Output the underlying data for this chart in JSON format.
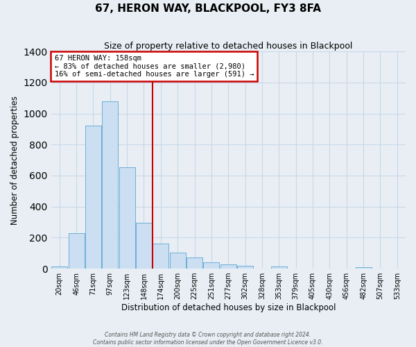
{
  "title": "67, HERON WAY, BLACKPOOL, FY3 8FA",
  "subtitle": "Size of property relative to detached houses in Blackpool",
  "xlabel": "Distribution of detached houses by size in Blackpool",
  "ylabel": "Number of detached properties",
  "bar_labels": [
    "20sqm",
    "46sqm",
    "71sqm",
    "97sqm",
    "123sqm",
    "148sqm",
    "174sqm",
    "200sqm",
    "225sqm",
    "251sqm",
    "277sqm",
    "302sqm",
    "328sqm",
    "353sqm",
    "379sqm",
    "405sqm",
    "430sqm",
    "456sqm",
    "482sqm",
    "507sqm",
    "533sqm"
  ],
  "bar_values": [
    15,
    230,
    920,
    1080,
    655,
    295,
    160,
    105,
    70,
    40,
    25,
    20,
    0,
    15,
    0,
    0,
    0,
    0,
    10,
    0,
    0
  ],
  "bar_color": "#ccdff2",
  "bar_edgecolor": "#6baed6",
  "vline_color": "#cc0000",
  "annotation_title": "67 HERON WAY: 158sqm",
  "annotation_line1": "← 83% of detached houses are smaller (2,980)",
  "annotation_line2": "16% of semi-detached houses are larger (591) →",
  "annotation_box_edgecolor": "#cc0000",
  "annotation_box_facecolor": "#ffffff",
  "ylim": [
    0,
    1400
  ],
  "yticks": [
    0,
    200,
    400,
    600,
    800,
    1000,
    1200,
    1400
  ],
  "footer_line1": "Contains HM Land Registry data © Crown copyright and database right 2024.",
  "footer_line2": "Contains public sector information licensed under the Open Government Licence v3.0.",
  "grid_color": "#c8d8e8",
  "background_color": "#e8eef4"
}
